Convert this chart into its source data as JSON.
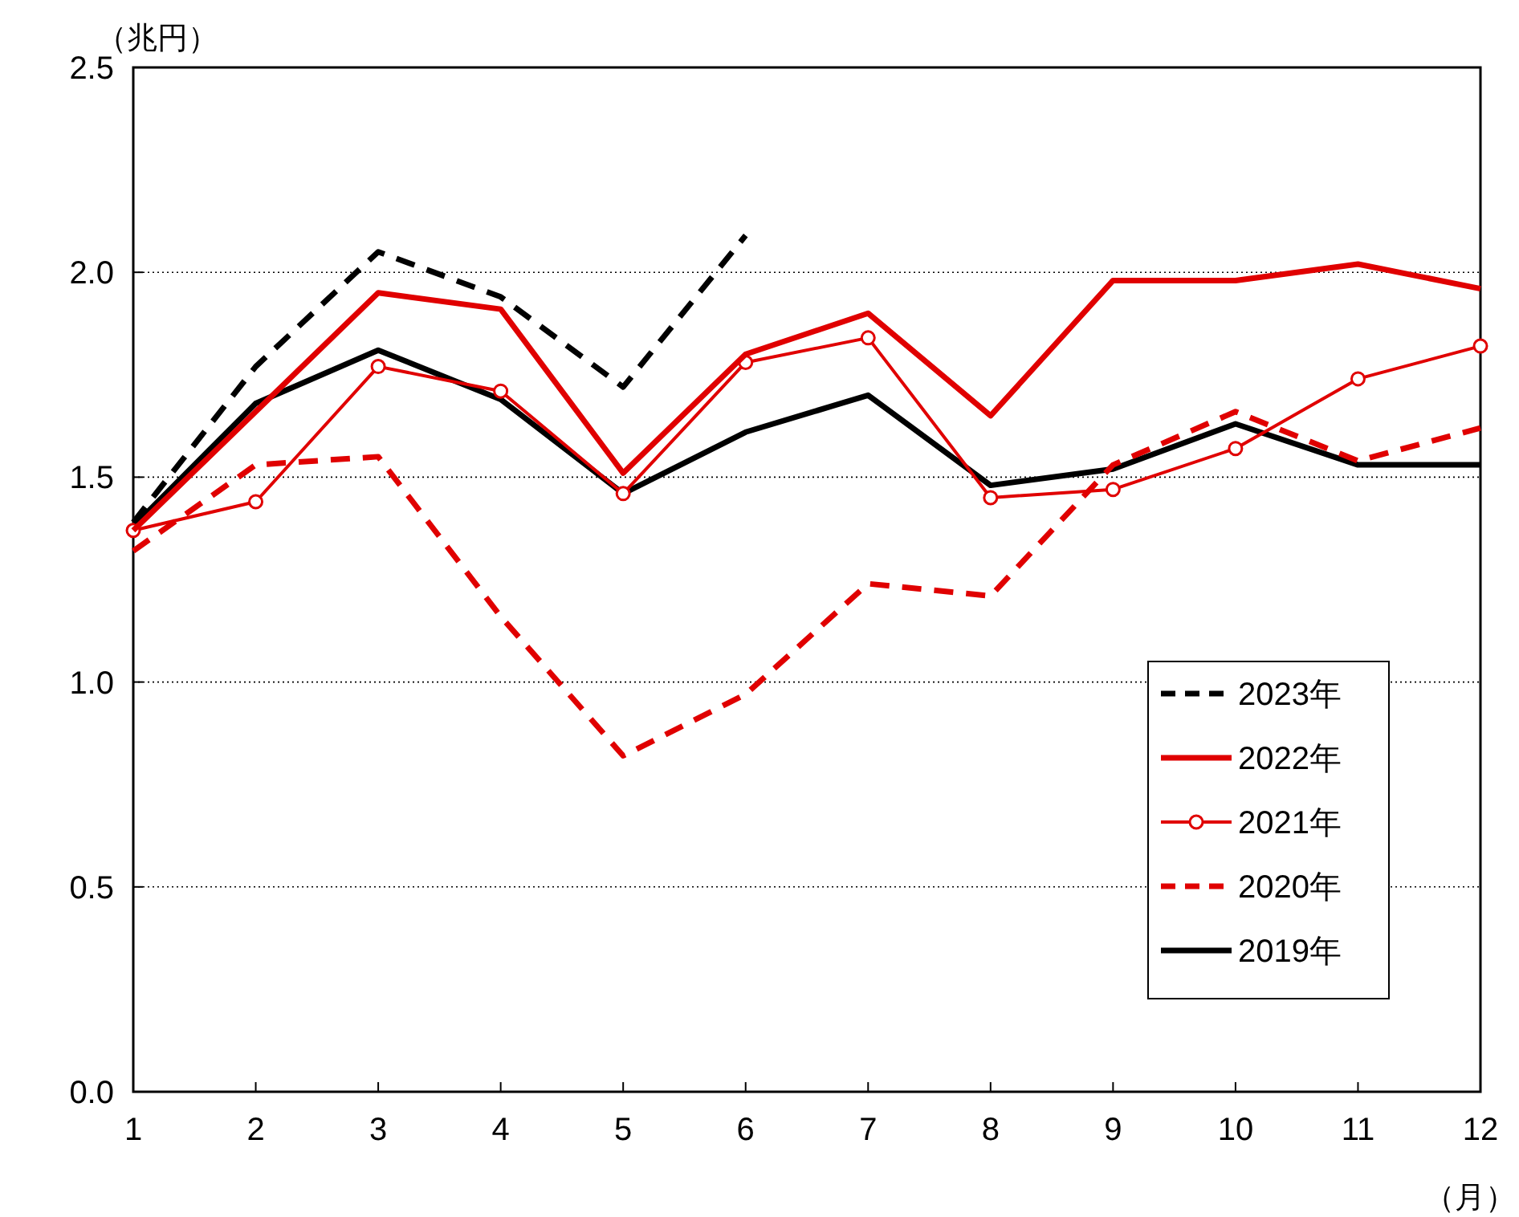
{
  "chart_data": {
    "type": "line",
    "ylabel": "（兆円）",
    "xlabel": "（月）",
    "x": [
      1,
      2,
      3,
      4,
      5,
      6,
      7,
      8,
      9,
      10,
      11,
      12
    ],
    "xlim": [
      1,
      12
    ],
    "xticks": [
      1,
      2,
      3,
      4,
      5,
      6,
      7,
      8,
      9,
      10,
      11,
      12
    ],
    "ylim": [
      0,
      2.5
    ],
    "yticks": [
      {
        "value": 0,
        "label": "0.0"
      },
      {
        "value": 0.5,
        "label": "0.5"
      },
      {
        "value": 1,
        "label": "1.0"
      },
      {
        "value": 1.5,
        "label": "1.5"
      },
      {
        "value": 2,
        "label": "2.0"
      },
      {
        "value": 2.5,
        "label": "2.5"
      }
    ],
    "grid": "y",
    "legend": "bottom right",
    "series": [
      {
        "name": "2023年",
        "color": "#000000",
        "line_style": "dashed",
        "values": [
          1.39,
          1.77,
          2.05,
          1.94,
          1.72,
          2.09,
          null,
          null,
          null,
          null,
          null,
          null
        ]
      },
      {
        "name": "2022年",
        "color": "#e00000",
        "line_style": "solid",
        "values": [
          1.37,
          1.66,
          1.95,
          1.91,
          1.51,
          1.8,
          1.9,
          1.65,
          1.98,
          1.98,
          2.02,
          1.96
        ]
      },
      {
        "name": "2021年",
        "color": "#e00000",
        "line_style": "solid",
        "marker": "circle",
        "values": [
          1.37,
          1.44,
          1.77,
          1.71,
          1.46,
          1.78,
          1.84,
          1.45,
          1.47,
          1.57,
          1.74,
          1.82
        ]
      },
      {
        "name": "2020年",
        "color": "#e00000",
        "line_style": "dashed",
        "values": [
          1.32,
          1.53,
          1.55,
          1.16,
          0.82,
          0.97,
          1.24,
          1.21,
          1.53,
          1.66,
          1.54,
          1.62
        ]
      },
      {
        "name": "2019年",
        "color": "#000000",
        "line_style": "solid",
        "values": [
          1.38,
          1.68,
          1.81,
          1.69,
          1.46,
          1.61,
          1.7,
          1.48,
          1.52,
          1.63,
          1.53,
          1.53
        ]
      }
    ]
  }
}
